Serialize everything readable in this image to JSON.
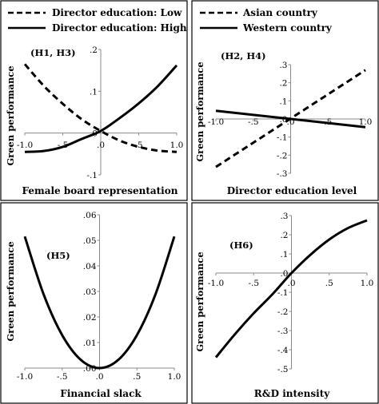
{
  "chart_data": [
    {
      "type": "line",
      "xlabel": "Female board representation",
      "ylabel": "Green performance",
      "annotation": "(H1, H3)",
      "xlim": [
        -1.0,
        1.0
      ],
      "ylim": [
        -0.1,
        0.2
      ],
      "x_ticks": [
        "-1.0",
        "-.5",
        ".0",
        ".5",
        "1.0"
      ],
      "y_ticks": [
        "-.1",
        ".0",
        ".1",
        ".2"
      ],
      "legend": "top",
      "x": [
        -1.0,
        -0.75,
        -0.5,
        -0.25,
        0.0,
        0.25,
        0.5,
        0.75,
        1.0
      ],
      "series": [
        {
          "name": "Director education: Low",
          "style": "dashed",
          "values": [
            0.165,
            0.113,
            0.07,
            0.033,
            0.005,
            -0.018,
            -0.033,
            -0.042,
            -0.045
          ]
        },
        {
          "name": "Director education: High",
          "style": "solid",
          "values": [
            -0.045,
            -0.043,
            -0.033,
            -0.014,
            0.005,
            0.036,
            0.071,
            0.112,
            0.162
          ]
        }
      ]
    },
    {
      "type": "line",
      "xlabel": "Director education level",
      "ylabel": "Green performance",
      "annotation": "(H2, H4)",
      "xlim": [
        -1.0,
        1.0
      ],
      "ylim": [
        -0.3,
        0.3
      ],
      "x_ticks": [
        "-1.0",
        "-.5",
        ".0",
        ".5",
        "1.0"
      ],
      "y_ticks": [
        "-.3",
        "-.2",
        "-.1",
        ".0",
        ".1",
        ".2",
        ".3"
      ],
      "legend": "top",
      "x": [
        -1.0,
        1.0
      ],
      "series": [
        {
          "name": "Asian country",
          "style": "dashed",
          "values": [
            -0.265,
            0.27
          ]
        },
        {
          "name": "Western country",
          "style": "solid",
          "values": [
            0.045,
            -0.045
          ]
        }
      ]
    },
    {
      "type": "line",
      "xlabel": "Financial slack",
      "ylabel": "Green performance",
      "annotation": "(H5)",
      "xlim": [
        -1.0,
        1.0
      ],
      "ylim": [
        0.0,
        0.06
      ],
      "x_ticks": [
        "-1.0",
        "-.5",
        ".0",
        ".5",
        "1.0"
      ],
      "y_ticks": [
        ".00",
        ".01",
        ".02",
        ".03",
        ".04",
        ".05",
        ".06"
      ],
      "x": [
        -1.0,
        -0.75,
        -0.5,
        -0.25,
        0.0,
        0.25,
        0.5,
        0.75,
        1.0
      ],
      "series": [
        {
          "style": "solid",
          "values": [
            0.0515,
            0.029,
            0.0129,
            0.0032,
            0.0,
            0.0032,
            0.0129,
            0.029,
            0.0515
          ]
        }
      ]
    },
    {
      "type": "line",
      "xlabel": "R&D intensity",
      "ylabel": "Green performance",
      "annotation": "(H6)",
      "xlim": [
        -1.0,
        1.0
      ],
      "ylim": [
        -0.5,
        0.3
      ],
      "x_ticks": [
        "-1.0",
        "-.5",
        ".0",
        ".5",
        "1.0"
      ],
      "y_ticks": [
        "-.5",
        "-.4",
        "-.3",
        "-.2",
        "-.1",
        ".0",
        ".1",
        ".2",
        ".3"
      ],
      "x": [
        -1.0,
        -0.75,
        -0.5,
        -0.25,
        0.0,
        0.25,
        0.5,
        0.75,
        1.0
      ],
      "series": [
        {
          "style": "solid",
          "values": [
            -0.44,
            -0.32,
            -0.21,
            -0.11,
            0.0,
            0.095,
            0.175,
            0.235,
            0.275
          ]
        }
      ]
    }
  ]
}
